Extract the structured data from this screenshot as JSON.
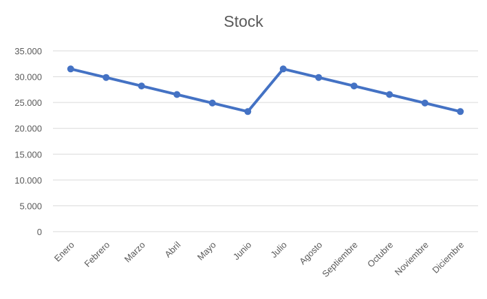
{
  "chart_data": {
    "type": "line",
    "title": "Stock",
    "xlabel": "",
    "ylabel": "",
    "categories": [
      "Enero",
      "Febrero",
      "Marzo",
      "Abril",
      "Mayo",
      "Junio",
      "Julio",
      "Agosto",
      "Septiembre",
      "Octubre",
      "Noviembre",
      "Diciembre"
    ],
    "series": [
      {
        "values": [
          31500,
          29850,
          28200,
          26550,
          24900,
          23250,
          31500,
          29850,
          28200,
          26550,
          24900,
          23250
        ]
      }
    ],
    "ylim": [
      0,
      35000
    ],
    "yticks": [
      0,
      5000,
      10000,
      15000,
      20000,
      25000,
      30000,
      35000
    ],
    "ytick_labels": [
      "0",
      "5.000",
      "10.000",
      "15.000",
      "20.000",
      "25.000",
      "30.000",
      "35.000"
    ],
    "grid": true,
    "legend": "none",
    "colors": {
      "series": "#4472C4",
      "grid": "#d9d9d9",
      "text": "#595959"
    }
  }
}
